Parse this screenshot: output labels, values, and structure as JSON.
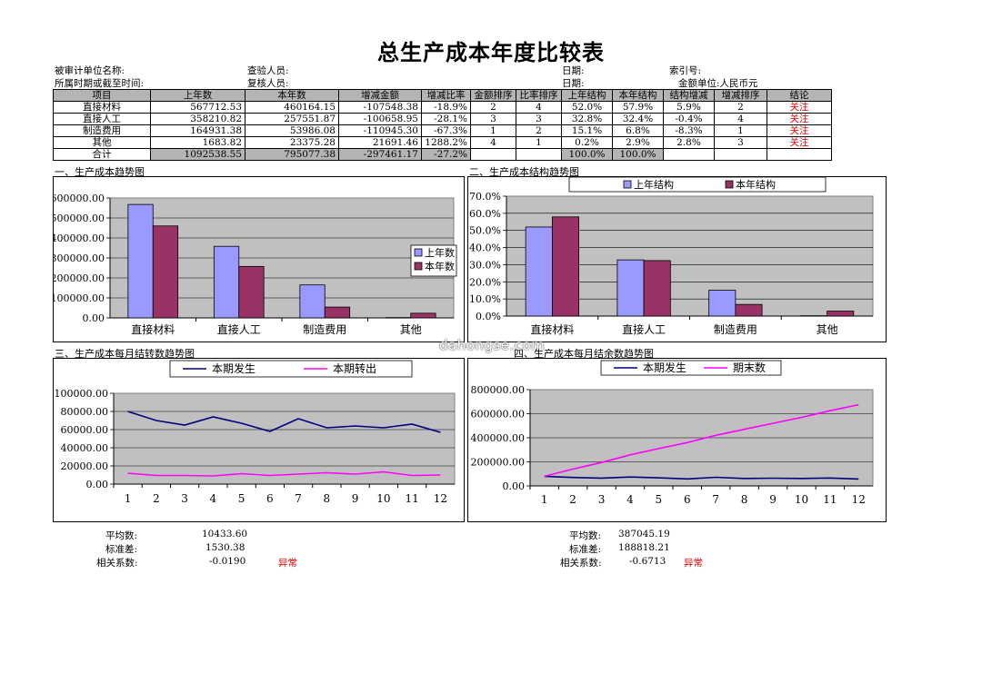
{
  "title": "总生产成本年度比较表",
  "meta": {
    "unit_label": "被审计单位名称:",
    "period_label": "所属时期或截至时间:",
    "checker_label": "查验人员:",
    "reviewer_label": "复核人员:",
    "date_label_1": "日期:",
    "date_label_2": "日期:",
    "index_label": "索引号:",
    "currency_label": "金额单位:",
    "currency_value": "人民币元"
  },
  "table": {
    "headers": [
      "项目",
      "上年数",
      "本年数",
      "增减金额",
      "增减比率",
      "金额排序",
      "比率排序",
      "上年结构",
      "本年结构",
      "结构增减",
      "增减排序",
      "结论"
    ],
    "rows": [
      [
        "直接材料",
        "567712.53",
        "460164.15",
        "-107548.38",
        "-18.9%",
        "2",
        "4",
        "52.0%",
        "57.9%",
        "5.9%",
        "2",
        "关注"
      ],
      [
        "直接人工",
        "358210.82",
        "257551.87",
        "-100658.95",
        "-28.1%",
        "3",
        "3",
        "32.8%",
        "32.4%",
        "-0.4%",
        "4",
        "关注"
      ],
      [
        "制造费用",
        "164931.38",
        "53986.08",
        "-110945.30",
        "-67.3%",
        "1",
        "2",
        "15.1%",
        "6.8%",
        "-8.3%",
        "1",
        "关注"
      ],
      [
        "其他",
        "1683.82",
        "23375.28",
        "21691.46",
        "1288.2%",
        "4",
        "1",
        "0.2%",
        "2.9%",
        "2.8%",
        "3",
        "关注"
      ]
    ],
    "total": [
      "合计",
      "1092538.55",
      "795077.38",
      "-297461.17",
      "-27.2%",
      "",
      "",
      "100.0%",
      "100.0%",
      "",
      "",
      ""
    ]
  },
  "sections": {
    "s1": "一、生产成本趋势图",
    "s2": "二、生产成本结构趋势图",
    "s3": "三、生产成本每月结转数趋势图",
    "s4": "四、生产成本每月结余数趋势图"
  },
  "chart_data": [
    {
      "type": "bar",
      "categories": [
        "直接材料",
        "直接人工",
        "制造费用",
        "其他"
      ],
      "series": [
        {
          "name": "上年数",
          "values": [
            567712.53,
            358210.82,
            164931.38,
            1683.82
          ],
          "color": "#9999ff"
        },
        {
          "name": "本年数",
          "values": [
            460164.15,
            257551.87,
            53986.08,
            23375.28
          ],
          "color": "#993366"
        }
      ],
      "ylim": [
        0,
        600000
      ],
      "yticks": [
        "0.00",
        "100000.00",
        "200000.00",
        "300000.00",
        "400000.00",
        "500000.00",
        "600000.00"
      ],
      "legend": "right",
      "grid": true
    },
    {
      "type": "bar",
      "categories": [
        "直接材料",
        "直接人工",
        "制造费用",
        "其他"
      ],
      "series": [
        {
          "name": "上年结构",
          "values": [
            52.0,
            32.8,
            15.1,
            0.2
          ],
          "color": "#9999ff"
        },
        {
          "name": "本年结构",
          "values": [
            57.9,
            32.4,
            6.8,
            2.9
          ],
          "color": "#993366"
        }
      ],
      "ylim": [
        0,
        70
      ],
      "yticks": [
        "0.0%",
        "10.0%",
        "20.0%",
        "30.0%",
        "40.0%",
        "50.0%",
        "60.0%",
        "70.0%"
      ],
      "legend": "top",
      "grid": true
    },
    {
      "type": "line",
      "x": [
        1,
        2,
        3,
        4,
        5,
        6,
        7,
        8,
        9,
        10,
        11,
        12
      ],
      "series": [
        {
          "name": "本期发生",
          "values": [
            80000,
            70000,
            65000,
            74000,
            67000,
            58000,
            72000,
            62000,
            64000,
            62000,
            66000,
            57000
          ],
          "color": "#000080"
        },
        {
          "name": "本期转出",
          "values": [
            12000,
            9500,
            9500,
            9000,
            11500,
            9500,
            11000,
            12500,
            11000,
            13500,
            9500,
            10000
          ],
          "color": "#ff00ff"
        }
      ],
      "ylim": [
        0,
        100000
      ],
      "yticks": [
        "0.00",
        "20000.00",
        "40000.00",
        "60000.00",
        "80000.00",
        "100000.00"
      ],
      "legend": "top",
      "grid": true
    },
    {
      "type": "line",
      "x": [
        1,
        2,
        3,
        4,
        5,
        6,
        7,
        8,
        9,
        10,
        11,
        12
      ],
      "series": [
        {
          "name": "本期发生",
          "values": [
            80000,
            70000,
            65000,
            74000,
            67000,
            58000,
            72000,
            62000,
            64000,
            62000,
            66000,
            57000
          ],
          "color": "#000080"
        },
        {
          "name": "期末数",
          "values": [
            80000,
            140000,
            195000,
            258000,
            310000,
            360000,
            420000,
            470000,
            520000,
            570000,
            625000,
            675000
          ],
          "color": "#ff00ff"
        }
      ],
      "ylim": [
        0,
        800000
      ],
      "yticks": [
        "0.00",
        "200000.00",
        "400000.00",
        "600000.00",
        "800000.00"
      ],
      "legend": "top",
      "grid": true
    }
  ],
  "stats": {
    "left": {
      "avg_label": "平均数:",
      "avg": "10433.60",
      "std_label": "标准差:",
      "std": "1530.38",
      "corr_label": "相关系数:",
      "corr": "-0.0190",
      "flag": "异常"
    },
    "right": {
      "avg_label": "平均数:",
      "avg": "387045.19",
      "std_label": "标准差:",
      "std": "188818.21",
      "corr_label": "相关系数:",
      "corr": "-0.6713",
      "flag": "异常"
    }
  },
  "watermark": "dahongse.com"
}
